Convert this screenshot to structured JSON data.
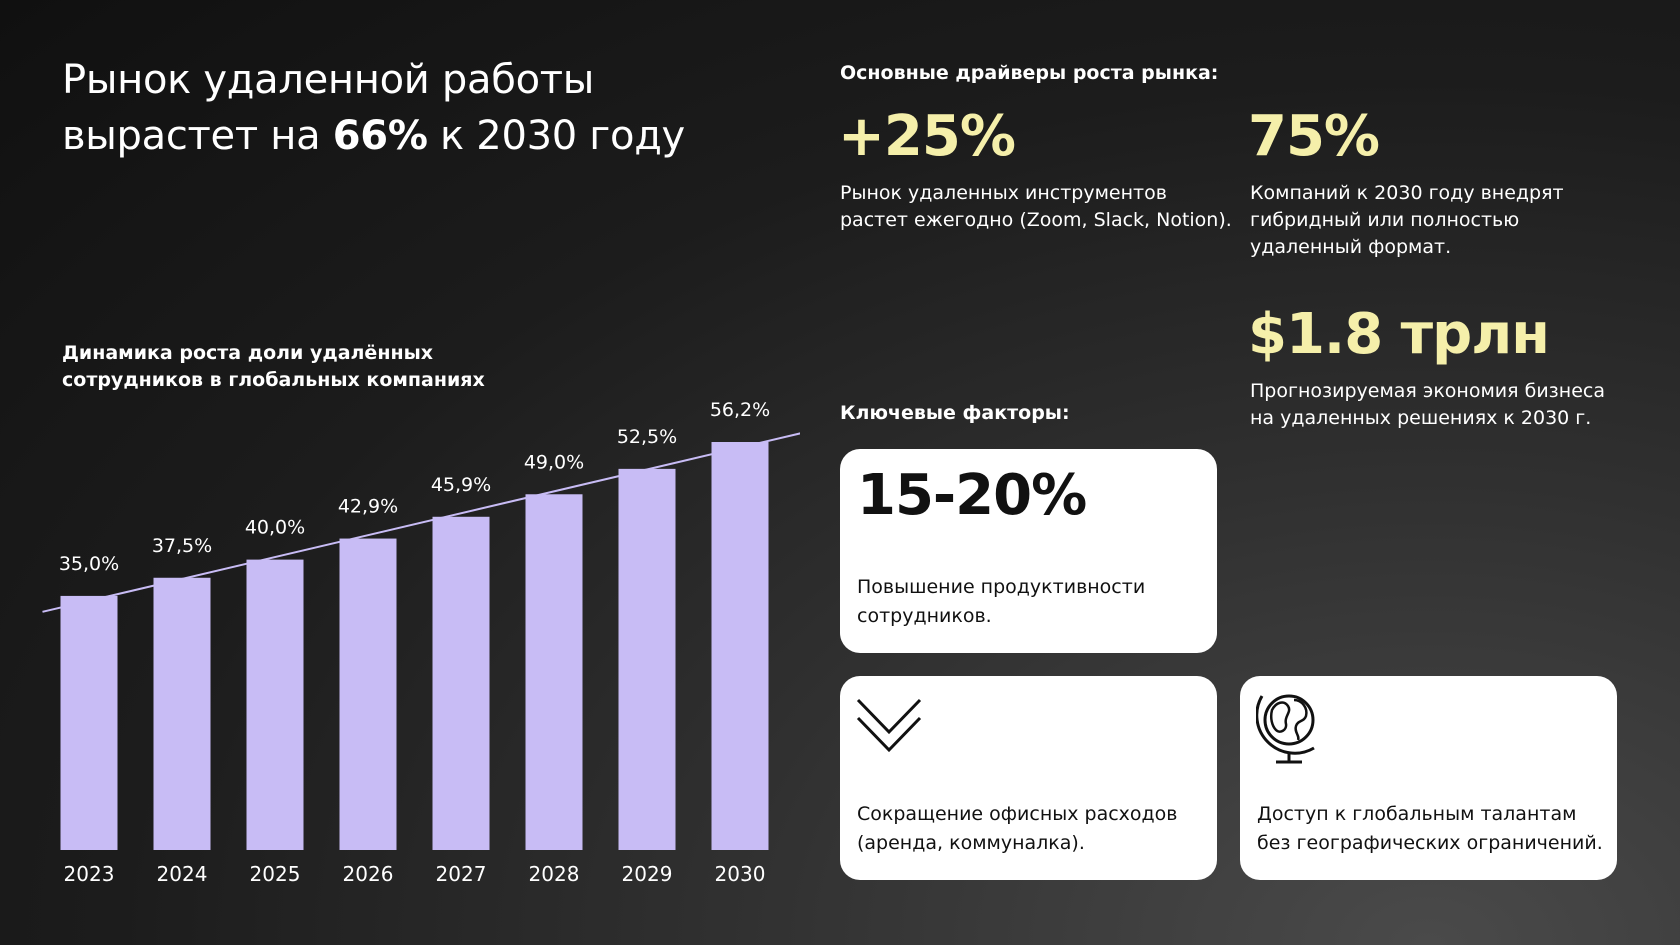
{
  "headline": {
    "line1": "Рынок удаленной работы",
    "line2_prefix": "вырастет на ",
    "line2_highlight": "66%",
    "line2_suffix": " к 2030 году"
  },
  "chart_title": "Динамика роста доли удалённых сотрудников в глобальных компаниях",
  "chart_data": {
    "type": "bar",
    "title": "Динамика роста доли удалённых сотрудников в глобальных компаниях",
    "categories": [
      "2023",
      "2024",
      "2025",
      "2026",
      "2027",
      "2028",
      "2029",
      "2030"
    ],
    "values": [
      35.0,
      37.5,
      40.0,
      42.9,
      45.9,
      49.0,
      52.5,
      56.2
    ],
    "data_labels": [
      "35,0%",
      "37,5%",
      "40,0%",
      "42,9%",
      "45,9%",
      "49,0%",
      "52,5%",
      "56,2%"
    ],
    "trendline": true,
    "bar_color": "#c8bcf5",
    "trend_color": "#c8bcf5",
    "grid": false,
    "xlabel": "",
    "ylabel": ""
  },
  "drivers": {
    "title": "Основные драйверы роста рынка:",
    "stats": [
      {
        "value": "+25%",
        "desc_lines": [
          "Рынок удаленных инструментов",
          "растет ежегодно (Zoom, Slack, Notion)."
        ]
      },
      {
        "value": "75%",
        "desc_lines": [
          "Компаний к 2030 году  внедрят",
          "гибридный или полностью",
          "удаленный формат."
        ]
      },
      {
        "value": "$1.8 трлн",
        "desc_lines": [
          "Прогнозируемая экономия бизнеса",
          "на удаленных решениях к 2030 г."
        ]
      }
    ]
  },
  "factors": {
    "title": "Ключевые факторы:",
    "cards": [
      {
        "big": "15-20%",
        "desc_lines": [
          "Повышение продуктивности",
          "сотрудников."
        ]
      },
      {
        "icon": "double-chevron-down-icon",
        "desc_lines": [
          "Сокращение офисных расходов",
          "(аренда, коммуналка)."
        ]
      },
      {
        "icon": "globe-icon",
        "desc_lines": [
          "Доступ к глобальным талантам",
          "без географических ограничений."
        ]
      }
    ]
  },
  "colors": {
    "accent_yellow": "#f5efaa",
    "bar_lavender": "#c8bcf5",
    "card_bg": "#ffffff"
  }
}
